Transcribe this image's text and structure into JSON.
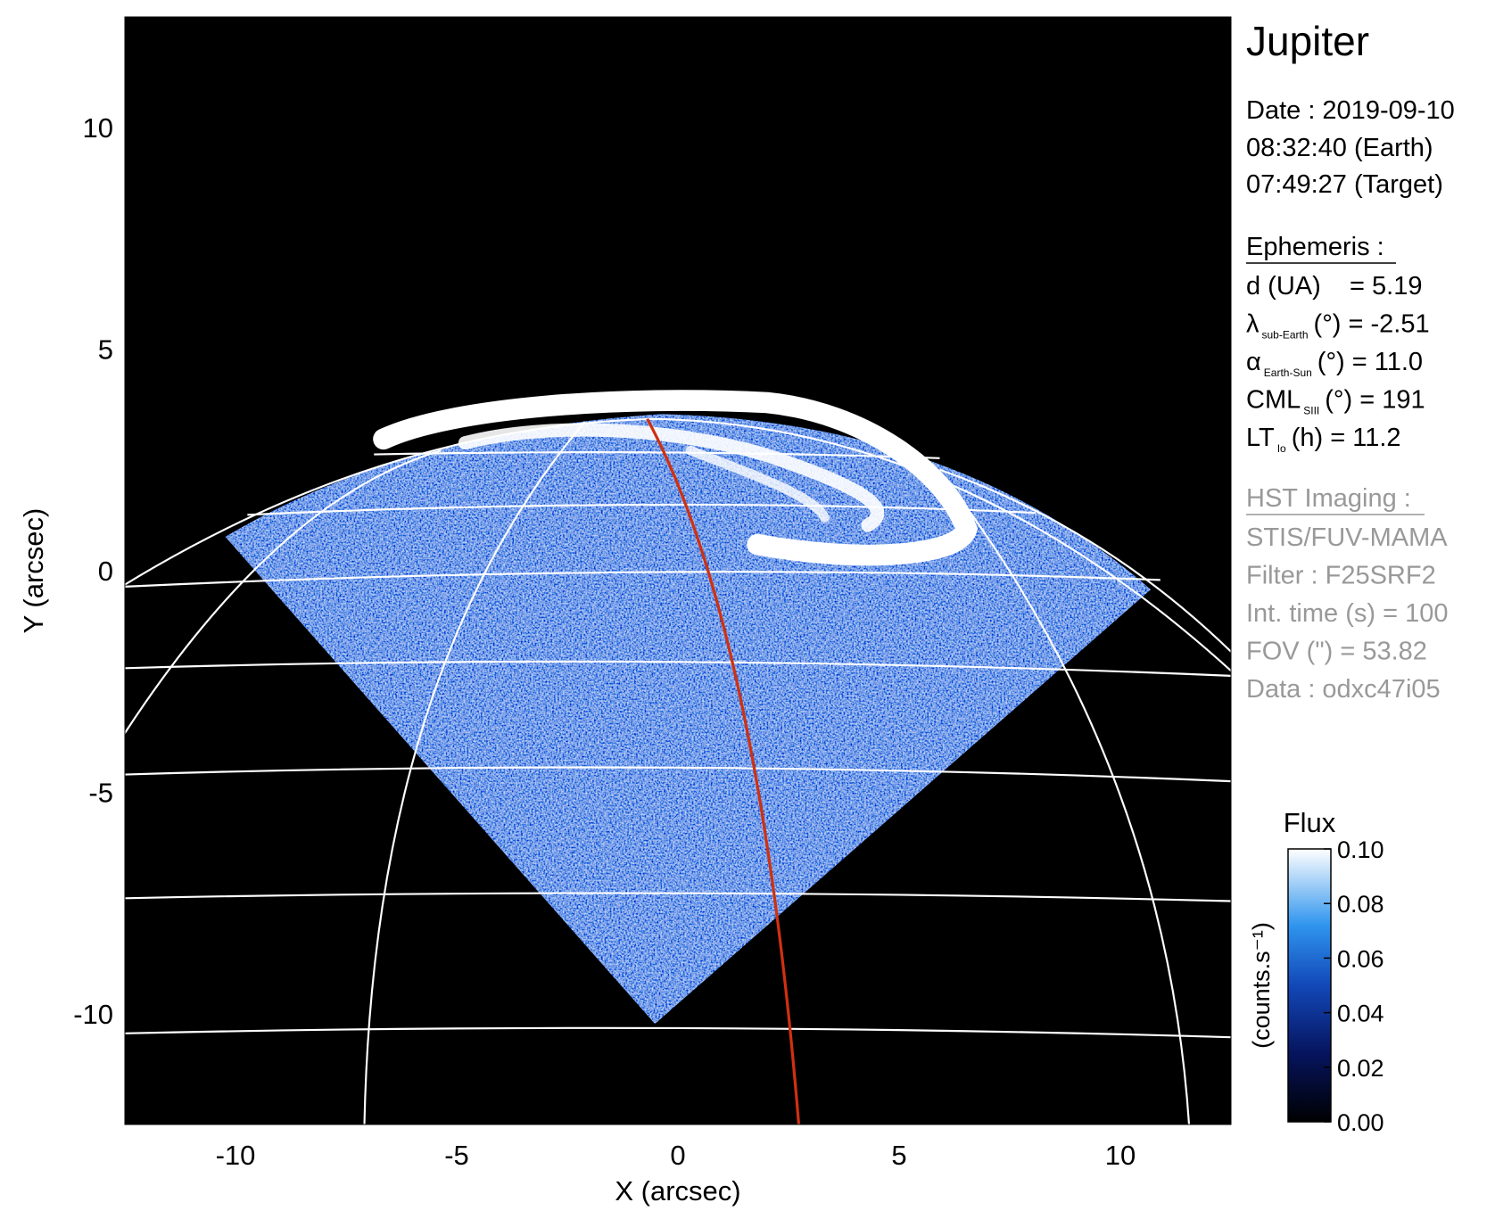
{
  "chart_data": {
    "type": "image",
    "xlabel": "X (arcsec)",
    "ylabel": "Y (arcsec)",
    "xlim": [
      -12.5,
      12.5
    ],
    "xticks": [
      -10,
      -5,
      0,
      5,
      10
    ],
    "ylim": [
      -12.5,
      12.5
    ],
    "yticks": [
      -10,
      -5,
      0,
      5,
      10
    ],
    "colorbar": {
      "label": "Flux",
      "unit": "(counts.s⁻¹)",
      "lim": [
        0,
        0.1
      ],
      "ticks": [
        {
          "value": 0,
          "label": "0.00"
        },
        0.02,
        0.04,
        0.06,
        0.08,
        {
          "value": 0.1,
          "label": "0.10"
        }
      ]
    }
  },
  "info": {
    "title": "Jupiter",
    "date": [
      "Date : 2019-09-10",
      "08:32:40 (Earth)",
      "07:49:27 (Target)"
    ],
    "ephemeris": {
      "heading": "Ephemeris :",
      "lines": [
        {
          "text": "d (UA)    = 5.19"
        },
        {
          "text": "λ",
          "sub": "sub-Earth",
          "rest": "(°) = -2.51"
        },
        {
          "text": "α",
          "sub": "Earth-Sun",
          "rest": "(°) = 11.0"
        },
        {
          "text": "CML",
          "sub": "SIII",
          "rest": "(°) = 191"
        },
        {
          "text": "LT",
          "sub": "Io",
          "rest": "(h) = 11.2"
        }
      ]
    },
    "imaging": {
      "heading": "HST Imaging :",
      "lines": [
        "STIS/FUV-MAMA",
        "Filter : F25SRF2",
        "Int. time (s) = 100",
        "FOV (\") = 53.82",
        "Data : odxc47i05"
      ]
    }
  }
}
